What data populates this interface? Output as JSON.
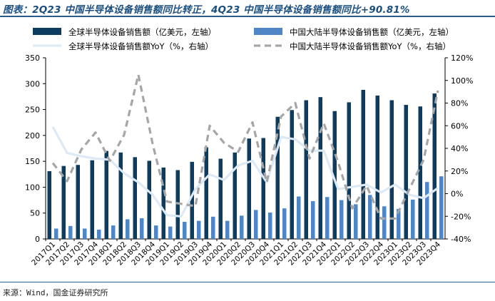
{
  "header": {
    "title": "图表：2Q23 中国半导体设备销售额同比转正，4Q23 中国半导体设备销售额同比+90.81%"
  },
  "footer": {
    "source": "来源：Wind，国金证券研究所"
  },
  "chart_data": {
    "type": "bar",
    "categories": [
      "2017Q1",
      "2017Q2",
      "2017Q3",
      "2017Q4",
      "2018Q1",
      "2018Q2",
      "2018Q3",
      "2018Q4",
      "2019Q1",
      "2019Q2",
      "2019Q3",
      "2019Q4",
      "2020Q1",
      "2020Q2",
      "2020Q3",
      "2020Q4",
      "2021Q1",
      "2021Q2",
      "2021Q3",
      "2021Q4",
      "2022Q1",
      "2022Q2",
      "2022Q3",
      "2022Q4",
      "2023Q1",
      "2023Q2",
      "2023Q3",
      "2023Q4"
    ],
    "series": [
      {
        "name": "全球半导体设备销售额（亿美元，左轴）",
        "type": "bar",
        "axis": "left",
        "color": "#0d3c61",
        "values": [
          131,
          141,
          143,
          152,
          170,
          167,
          158,
          151,
          138,
          133,
          149,
          177,
          155,
          167,
          194,
          195,
          236,
          249,
          268,
          274,
          247,
          264,
          288,
          277,
          268,
          259,
          256,
          281
        ]
      },
      {
        "name": "中国大陆半导体设备销售额（亿美元，左轴）",
        "type": "bar",
        "axis": "left",
        "color": "#4f86c6",
        "values": [
          20,
          25,
          20,
          18,
          26,
          38,
          40,
          26,
          24,
          33,
          35,
          43,
          35,
          45,
          56,
          51,
          59,
          82,
          73,
          81,
          75,
          67,
          85,
          63,
          58,
          76,
          110,
          121
        ]
      },
      {
        "name": "全球半导体设备销售额YoY（%，右轴）",
        "type": "line",
        "axis": "right",
        "color": "#dde9f5",
        "dash": "solid",
        "values": [
          59,
          36,
          33,
          31,
          30,
          18,
          10,
          -1,
          -19,
          -20,
          4,
          17,
          12,
          25,
          29,
          10,
          50,
          48,
          38,
          38,
          4,
          6,
          8,
          1,
          8,
          -1,
          -4,
          5
        ]
      },
      {
        "name": "中国大陆半导体设备销售额YoY（%，右轴）",
        "type": "line",
        "axis": "right",
        "color": "#a6a6a6",
        "dash": "dashed",
        "values": [
          27,
          11,
          39,
          54,
          29,
          52,
          105,
          44,
          -7,
          -9,
          -11,
          60,
          45,
          37,
          63,
          10,
          68,
          80,
          31,
          62,
          28,
          -13,
          7,
          -22,
          -22,
          4,
          30,
          91
        ]
      }
    ],
    "y_left": {
      "ylim": [
        0,
        350
      ],
      "ticks": [
        0,
        50,
        100,
        150,
        200,
        250,
        300,
        350
      ]
    },
    "y_right": {
      "ylim": [
        -40,
        120
      ],
      "ticks": [
        -40,
        -20,
        0,
        20,
        40,
        60,
        80,
        100,
        120
      ],
      "unit": "%"
    },
    "legend_placement": "top",
    "grid": false
  }
}
